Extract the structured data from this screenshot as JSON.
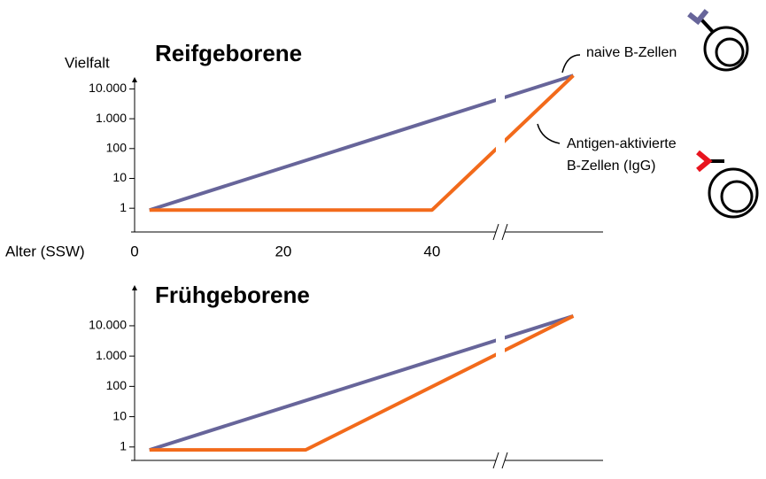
{
  "chart_data": [
    {
      "type": "line",
      "title": "Reifgeborene",
      "ylabel": "Vielfalt",
      "xlabel": "Alter (SSW)",
      "log_y": true,
      "xlim": [
        0,
        63
      ],
      "ylim": [
        0.16,
        25000
      ],
      "xticks": [
        0,
        20,
        40
      ],
      "yticks": [
        1,
        10,
        100,
        {
          "value": 1000,
          "label": "1.000"
        },
        {
          "value": 10000,
          "label": "10.000"
        }
      ],
      "series": [
        {
          "color": "#67659a",
          "x": [
            2,
            59
          ],
          "values": [
            0.87,
            28000
          ]
        },
        {
          "color": "#f26a1b",
          "x": [
            2,
            40,
            59
          ],
          "values": [
            0.87,
            0.87,
            28000
          ]
        }
      ],
      "annotations": [
        "naive B-Zellen",
        "Antigen-aktivierte",
        "B-Zellen (IgG)"
      ]
    },
    {
      "type": "line",
      "title": "Frühgeborene",
      "log_y": true,
      "xlim": [
        0,
        63
      ],
      "ylim": [
        0.36,
        220000
      ],
      "yticks": [
        1,
        10,
        100,
        {
          "value": 1000,
          "label": "1.000"
        },
        {
          "value": 10000,
          "label": "10.000"
        }
      ],
      "series": [
        {
          "color": "#67659a",
          "x": [
            2,
            59
          ],
          "values": [
            0.8,
            21000
          ]
        },
        {
          "color": "#f26a1b",
          "x": [
            2,
            23,
            59
          ],
          "values": [
            0.8,
            0.8,
            21000
          ]
        }
      ]
    }
  ]
}
